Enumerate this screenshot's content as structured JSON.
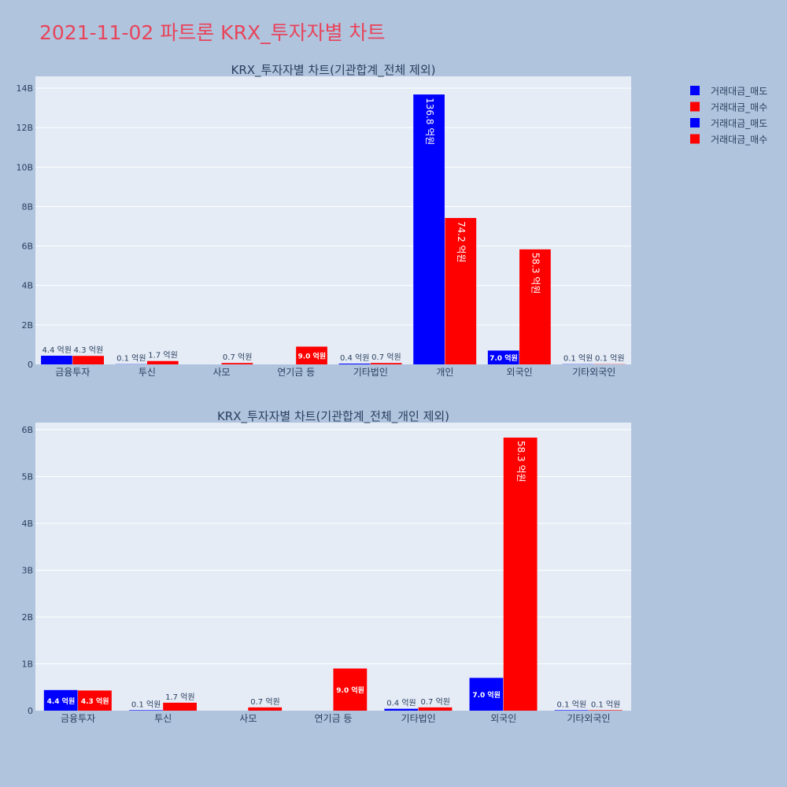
{
  "page": {
    "title": "2021-11-02 파트론 KRX_투자자별 차트",
    "background": "#b0c4de",
    "title_color": "#e8445a"
  },
  "legend": {
    "placement": "top-right",
    "items": [
      {
        "label": "거래대금_매도",
        "color": "#0000ff"
      },
      {
        "label": "거래대금_매수",
        "color": "#ff0000"
      },
      {
        "label": "거래대금_매도",
        "color": "#0000ff"
      },
      {
        "label": "거래대금_매수",
        "color": "#ff0000"
      }
    ]
  },
  "chart_data": [
    {
      "type": "bar",
      "title": "KRX_투자자별 차트(기관합계_전체 제외)",
      "categories": [
        "금융투자",
        "투신",
        "사모",
        "연기금 등",
        "기타법인",
        "개인",
        "외국인",
        "기타외국인"
      ],
      "ylim": [
        0,
        14.6
      ],
      "yticks": [
        0,
        2,
        4,
        6,
        8,
        10,
        12,
        14
      ],
      "ytick_labels": [
        "0",
        "2B",
        "4B",
        "6B",
        "8B",
        "10B",
        "12B",
        "14B"
      ],
      "grid": true,
      "series": [
        {
          "name": "거래대금_매도",
          "color": "#0000ff",
          "values": [
            0.44,
            0.01,
            0,
            0,
            0.04,
            13.68,
            0.7,
            0.01
          ],
          "labels": [
            "4.4 억원",
            "0.1 억원",
            "",
            "",
            "0.4 억원",
            "136.8 억원",
            "7.0 억원",
            "0.1 억원"
          ]
        },
        {
          "name": "거래대금_매수",
          "color": "#ff0000",
          "values": [
            0.43,
            0.17,
            0.07,
            0.9,
            0.07,
            7.42,
            5.83,
            0.01
          ],
          "labels": [
            "4.3 억원",
            "1.7 억원",
            "0.7 억원",
            "9.0 억원",
            "0.7 억원",
            "74.2 억원",
            "58.3 억원",
            "0.1 억원"
          ]
        }
      ]
    },
    {
      "type": "bar",
      "title": "KRX_투자자별 차트(기관합계_전체_개인 제외)",
      "categories": [
        "금융투자",
        "투신",
        "사모",
        "연기금 등",
        "기타법인",
        "외국인",
        "기타외국인"
      ],
      "ylim": [
        0,
        6.15
      ],
      "yticks": [
        0,
        1,
        2,
        3,
        4,
        5,
        6
      ],
      "ytick_labels": [
        "0",
        "1B",
        "2B",
        "3B",
        "4B",
        "5B",
        "6B"
      ],
      "grid": true,
      "series": [
        {
          "name": "거래대금_매도",
          "color": "#0000ff",
          "values": [
            0.44,
            0.01,
            0,
            0,
            0.04,
            0.7,
            0.01
          ],
          "labels": [
            "4.4 억원",
            "0.1 억원",
            "",
            "",
            "0.4 억원",
            "7.0 억원",
            "0.1 억원"
          ]
        },
        {
          "name": "거래대금_매수",
          "color": "#ff0000",
          "values": [
            0.43,
            0.17,
            0.07,
            0.9,
            0.07,
            5.83,
            0.01
          ],
          "labels": [
            "4.3 억원",
            "1.7 억원",
            "0.7 억원",
            "9.0 억원",
            "0.7 억원",
            "58.3 억원",
            "0.1 억원"
          ]
        }
      ]
    }
  ]
}
